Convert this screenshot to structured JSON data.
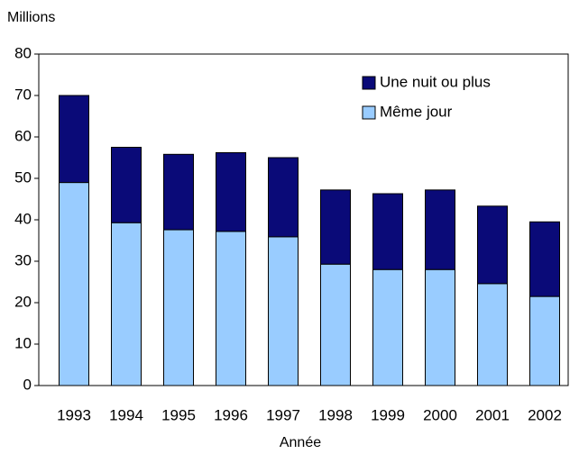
{
  "chart_data": {
    "type": "stacked_bar",
    "y_axis_label": "Millions",
    "x_axis_label": "Année",
    "categories": [
      "1993",
      "1994",
      "1995",
      "1996",
      "1997",
      "1998",
      "1999",
      "2000",
      "2001",
      "2002"
    ],
    "series": [
      {
        "name": "Même jour",
        "color": "#99ccff",
        "values": [
          49,
          39.3,
          37.6,
          37.2,
          35.9,
          29.3,
          28,
          28,
          24.6,
          21.5
        ]
      },
      {
        "name": "Une nuit ou plus",
        "color": "#0a0a78",
        "values": [
          21,
          18.2,
          18.2,
          19,
          19.1,
          17.9,
          18.3,
          19.2,
          18.7,
          18
        ]
      }
    ],
    "ylim": [
      0,
      80
    ],
    "yticks": [
      0,
      10,
      20,
      30,
      40,
      50,
      60,
      70,
      80
    ],
    "grid": false
  }
}
